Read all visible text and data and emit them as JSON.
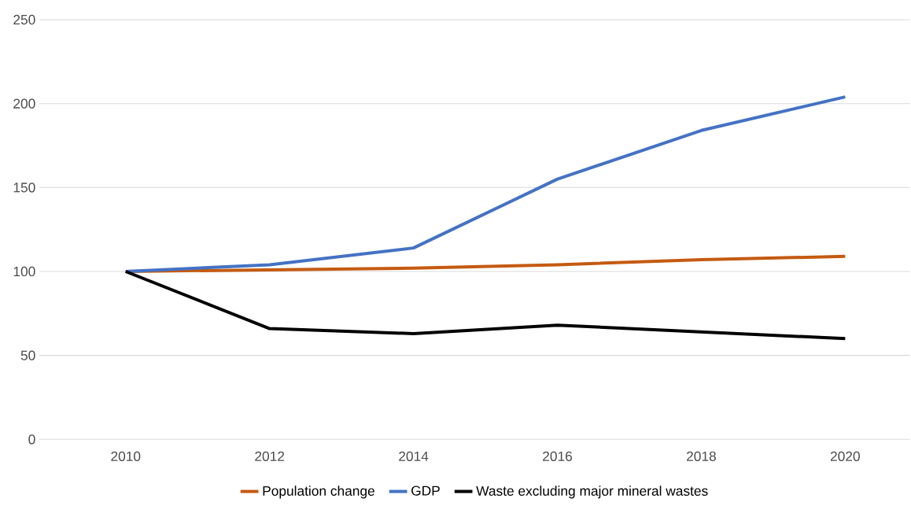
{
  "chart_data": {
    "type": "line",
    "categories": [
      "2010",
      "2012",
      "2014",
      "2016",
      "2018",
      "2020"
    ],
    "series": [
      {
        "name": "Population change",
        "color": "#c55a11",
        "values": [
          100,
          101,
          102,
          104,
          107,
          109
        ]
      },
      {
        "name": "GDP",
        "color": "#4472c4",
        "values": [
          100,
          104,
          114,
          155,
          184,
          204
        ]
      },
      {
        "name": "Waste excluding major mineral wastes",
        "color": "#000000",
        "values": [
          100,
          66,
          63,
          68,
          64,
          60
        ]
      }
    ],
    "ylim": [
      0,
      250
    ],
    "yticks": [
      0,
      50,
      100,
      150,
      200,
      250
    ],
    "grid": "y",
    "legend": "bottom"
  }
}
